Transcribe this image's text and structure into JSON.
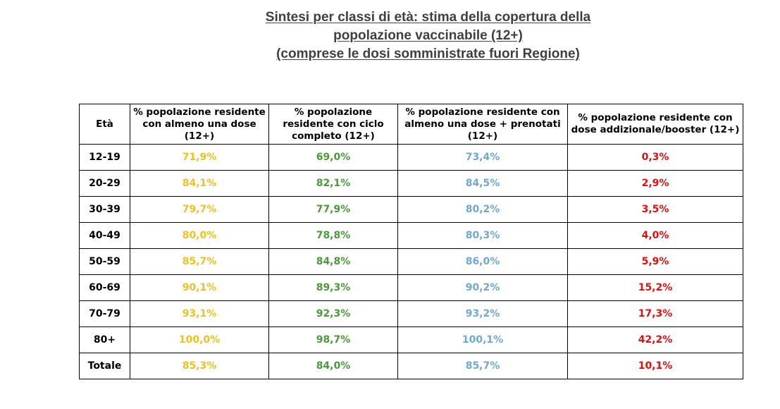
{
  "title": {
    "line1": "Sintesi per classi di età: stima della copertura della",
    "line2": "popolazione vaccinabile (12+)",
    "line3": "(comprese le dosi somministrate fuori Regione)"
  },
  "table": {
    "headers": {
      "age": "Età",
      "dose1": "% popolazione residente con almeno una dose (12+)",
      "full": "% popolazione residente con ciclo completo (12+)",
      "prenotati": "% popolazione residente con almeno una dose + prenotati (12+)",
      "booster": "% popolazione residente con dose addizionale/booster (12+)"
    },
    "rows": [
      {
        "age": "12-19",
        "dose1": "71,9%",
        "full": "69,0%",
        "prenotati": "73,4%",
        "booster": "0,3%"
      },
      {
        "age": "20-29",
        "dose1": "84,1%",
        "full": "82,1%",
        "prenotati": "84,5%",
        "booster": "2,9%"
      },
      {
        "age": "30-39",
        "dose1": "79,7%",
        "full": "77,9%",
        "prenotati": "80,2%",
        "booster": "3,5%"
      },
      {
        "age": "40-49",
        "dose1": "80,0%",
        "full": "78,8%",
        "prenotati": "80,3%",
        "booster": "4,0%"
      },
      {
        "age": "50-59",
        "dose1": "85,7%",
        "full": "84,8%",
        "prenotati": "86,0%",
        "booster": "5,9%"
      },
      {
        "age": "60-69",
        "dose1": "90,1%",
        "full": "89,3%",
        "prenotati": "90,2%",
        "booster": "15,2%"
      },
      {
        "age": "70-79",
        "dose1": "93,1%",
        "full": "92,3%",
        "prenotati": "93,2%",
        "booster": "17,3%"
      },
      {
        "age": "80+",
        "dose1": "100,0%",
        "full": "98,7%",
        "prenotati": "100,1%",
        "booster": "42,2%"
      },
      {
        "age": "Totale",
        "dose1": "85,3%",
        "full": "84,0%",
        "prenotati": "85,7%",
        "booster": "10,1%"
      }
    ]
  },
  "colors": {
    "title": "#404040",
    "dose1": "#f0c020",
    "full": "#4a9a3a",
    "prenotati": "#6fa8d6",
    "booster": "#e01010"
  }
}
